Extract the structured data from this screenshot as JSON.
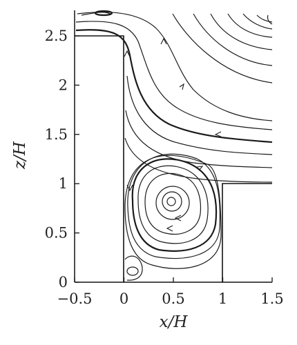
{
  "axes": {
    "xlabel": "x/H",
    "ylabel": "z/H",
    "xlim": [
      -0.5,
      1.5
    ],
    "ylim": [
      0,
      2.7
    ],
    "xticks": [
      {
        "value": -0.5,
        "label": "−0.5"
      },
      {
        "value": 0,
        "label": "0"
      },
      {
        "value": 0.5,
        "label": "0.5"
      },
      {
        "value": 1,
        "label": "1"
      },
      {
        "value": 1.5,
        "label": "1.5"
      }
    ],
    "yticks": [
      {
        "value": 0,
        "label": "0"
      },
      {
        "value": 0.5,
        "label": "0.5"
      },
      {
        "value": 1,
        "label": "1"
      },
      {
        "value": 1.5,
        "label": "1.5"
      },
      {
        "value": 2,
        "label": "2"
      },
      {
        "value": 2.5,
        "label": "2.5"
      }
    ]
  },
  "geometry": {
    "upstream_block": {
      "x": [
        -0.5,
        0
      ],
      "top": 2.5
    },
    "cavity": {
      "x": [
        0,
        1
      ],
      "bottom": 0
    },
    "downstream_block": {
      "x": [
        1,
        1.5
      ],
      "top": 1
    }
  }
}
